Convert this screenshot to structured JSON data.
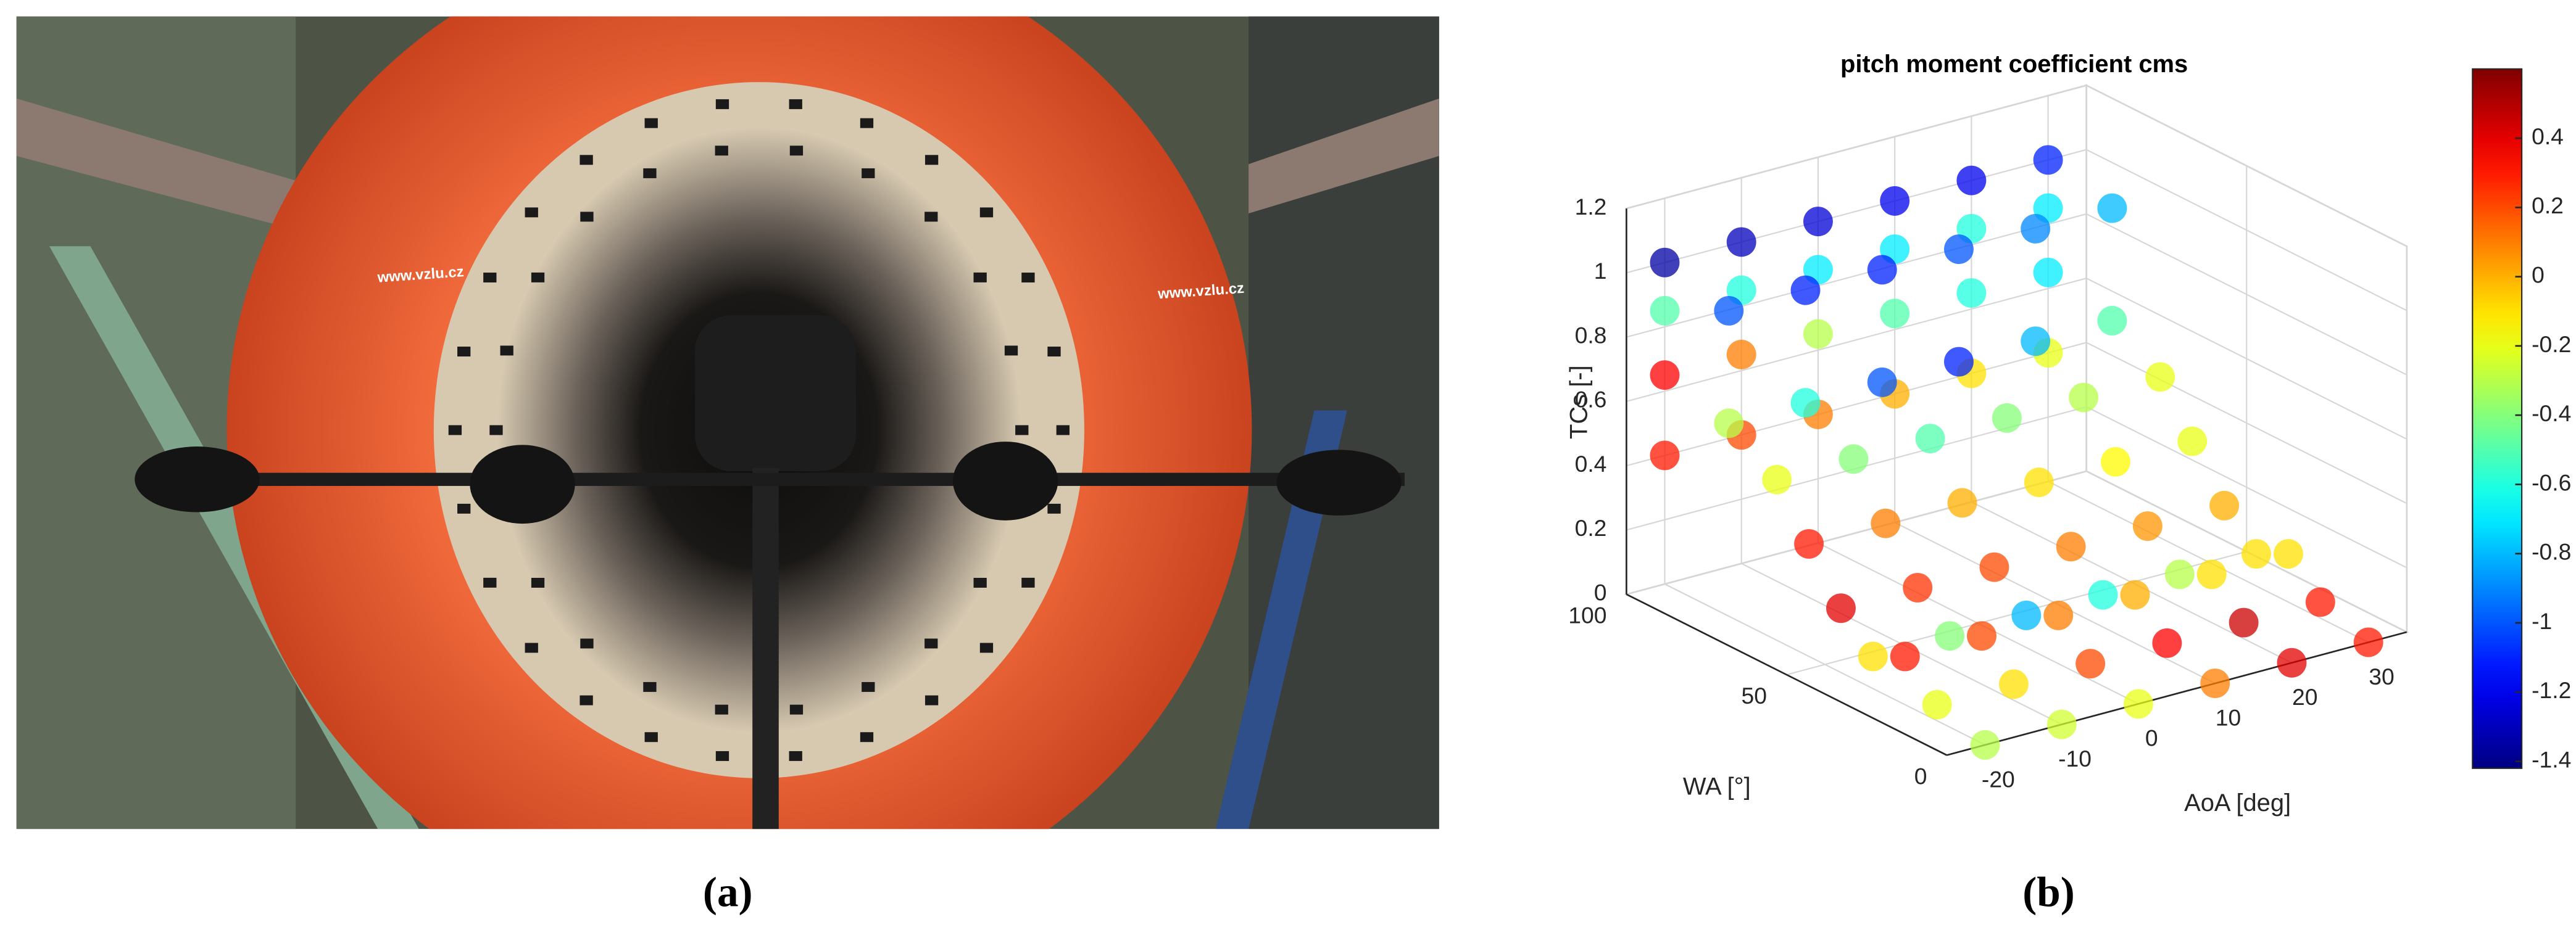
{
  "photo": {
    "logo_texts": [
      "www.vzlu.cz",
      "www.vzlu.cz"
    ]
  },
  "captions": [
    "(a)",
    "(b)"
  ],
  "chart_data": {
    "type": "scatter3d",
    "title": "pitch moment coefficient cms",
    "xlabel": "AoA [deg]",
    "ylabel": "WA [°]",
    "zlabel": "TCs [-]",
    "xlim": [
      -25,
      35
    ],
    "ylim": [
      0,
      100
    ],
    "zlim": [
      0,
      1.2
    ],
    "xticks": [
      -20,
      -10,
      0,
      10,
      20,
      30
    ],
    "yticks": [
      0,
      50,
      100
    ],
    "zticks": [
      0,
      0.2,
      0.4,
      0.6,
      0.8,
      1,
      1.2
    ],
    "colormap": "jet",
    "clim": [
      -1.42,
      0.6
    ],
    "cticks": [
      -1.4,
      -1.2,
      -1,
      -0.8,
      -0.6,
      -0.4,
      -0.2,
      0,
      0.2,
      0.4
    ],
    "grid": true,
    "x": [
      -20,
      -10,
      0,
      10,
      20,
      30,
      -20,
      -10,
      0,
      10,
      20,
      30,
      -20,
      -10,
      0,
      10,
      20,
      30,
      -20,
      -10,
      0,
      10,
      20,
      30,
      -20,
      -10,
      0,
      10,
      20,
      30,
      -20,
      -10,
      0,
      10,
      20,
      30,
      -20,
      -10,
      0,
      10,
      20,
      30,
      -20,
      -10,
      0,
      10,
      20,
      30,
      -20,
      -10,
      0,
      10,
      20,
      30,
      -20,
      -10,
      0,
      10,
      20,
      30,
      -20,
      -10,
      0,
      10,
      20,
      30,
      -20,
      -10,
      0,
      10,
      20,
      30,
      -20,
      -10,
      0,
      10,
      20,
      30
    ],
    "y": [
      100,
      100,
      100,
      100,
      100,
      100,
      100,
      100,
      100,
      100,
      100,
      100,
      100,
      100,
      100,
      100,
      100,
      100,
      100,
      100,
      100,
      100,
      100,
      100,
      80,
      80,
      80,
      80,
      80,
      80,
      80,
      80,
      80,
      80,
      80,
      80,
      65,
      65,
      65,
      65,
      65,
      65,
      55,
      55,
      55,
      55,
      55,
      55,
      45,
      45,
      45,
      45,
      45,
      45,
      35,
      35,
      35,
      35,
      35,
      35,
      25,
      25,
      25,
      25,
      25,
      25,
      15,
      15,
      15,
      15,
      15,
      15,
      0,
      0,
      0,
      0,
      0,
      0
    ],
    "z": [
      1,
      1,
      1,
      1,
      1,
      1,
      0.85,
      0.85,
      0.85,
      0.85,
      0.85,
      0.85,
      0.65,
      0.65,
      0.65,
      0.65,
      0.65,
      0.65,
      0.4,
      0.4,
      0.4,
      0.4,
      0.4,
      0.4,
      0.95,
      0.95,
      0.95,
      0.95,
      0.95,
      0.95,
      0.6,
      0.6,
      0.6,
      0.6,
      0.6,
      0.6,
      0.5,
      0.5,
      0.5,
      0.5,
      0.5,
      0.5,
      0.35,
      0.35,
      0.35,
      0.35,
      0.35,
      0.35,
      0.2,
      0.2,
      0.2,
      0.2,
      0.2,
      0.2,
      0.1,
      0.1,
      0.1,
      0.1,
      0.1,
      0.1,
      0.15,
      0.15,
      0.15,
      0.15,
      0.15,
      0.15,
      0.05,
      0.05,
      0.05,
      0.05,
      0.05,
      0.05,
      0,
      0,
      0,
      0,
      0,
      0
    ],
    "c": [
      -1.35,
      -1.3,
      -1.25,
      -1.2,
      -1.2,
      -1.1,
      -0.5,
      -0.6,
      -0.7,
      -0.7,
      -0.6,
      -0.7,
      0.35,
      0.1,
      -0.3,
      -0.5,
      -0.6,
      -0.7,
      0.3,
      0.2,
      0.1,
      0,
      -0.1,
      -0.2,
      -1,
      -1.1,
      -1.1,
      -1,
      -0.9,
      -0.8,
      -0.3,
      -0.6,
      -1,
      -1.1,
      -0.8,
      -0.5,
      -0.2,
      -0.4,
      -0.5,
      -0.4,
      -0.3,
      -0.2,
      0.3,
      0.1,
      0,
      -0.1,
      -0.15,
      -0.2,
      0.4,
      0.25,
      0.2,
      0.1,
      0.05,
      0,
      -0.1,
      -0.4,
      -0.8,
      -0.6,
      -0.3,
      -0.1,
      0.3,
      0.2,
      0.1,
      0,
      -0.1,
      -0.1,
      -0.2,
      -0.1,
      0.2,
      0.35,
      0.45,
      0.3,
      -0.3,
      -0.25,
      -0.2,
      0.1,
      0.4,
      0.3
    ]
  }
}
